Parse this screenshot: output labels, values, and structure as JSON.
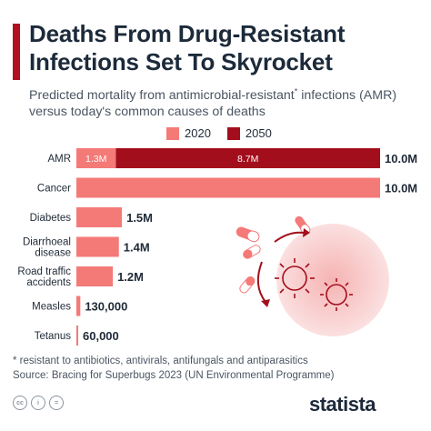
{
  "title": "Deaths From Drug-Resistant Infections Set To Skyrocket",
  "subtitle_main": "Predicted mortality from antimicrobial-resistant",
  "subtitle_mark": "*",
  "subtitle_end": " infections (AMR) versus today's common causes of deaths",
  "colors": {
    "c2020": "#f47a78",
    "c2050": "#a30e1c",
    "accent": "#b0101f"
  },
  "footnote": "* resistant to antibiotics, antivirals, antifungals and antiparasitics",
  "source": "Source: Bracing for Superbugs 2023 (UN Environmental Programme)",
  "brand": "statista",
  "chart_data": {
    "type": "bar",
    "orientation": "horizontal",
    "stacked": true,
    "title": "Deaths From Drug-Resistant Infections Set To Skyrocket",
    "subtitle": "Predicted mortality from antimicrobial-resistant* infections (AMR) versus today's common causes of deaths",
    "legend": [
      "2020",
      "2050"
    ],
    "legend_position": "top",
    "grid": false,
    "xlim": [
      0,
      10000000
    ],
    "categories": [
      "AMR",
      "Cancer",
      "Diabetes",
      "Diarrhoeal disease",
      "Road traffic accidents",
      "Measles",
      "Tetanus"
    ],
    "series": [
      {
        "name": "2020",
        "values": [
          1300000,
          10000000,
          1500000,
          1400000,
          1200000,
          130000,
          60000
        ]
      },
      {
        "name": "2050",
        "values": [
          8700000,
          0,
          0,
          0,
          0,
          0,
          0
        ]
      }
    ],
    "segment_labels": [
      [
        "1.3M",
        "8.7M"
      ],
      [],
      [],
      [],
      [],
      [],
      []
    ],
    "total_labels": [
      "10.0M",
      "10.0M",
      "1.5M",
      "1.4M",
      "1.2M",
      "130,000",
      "60,000"
    ]
  }
}
